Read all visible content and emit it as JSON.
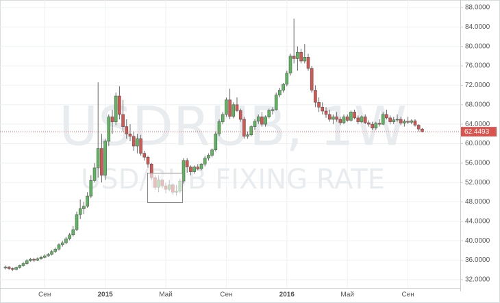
{
  "chart_data": {
    "type": "candlestick",
    "watermark": "USDRUB, 1W",
    "subtitle": "USD/RUB FIXING RATE",
    "categories": [
      null,
      null,
      null,
      null,
      null,
      null,
      null,
      null,
      null,
      null,
      null,
      "Сен",
      null,
      null,
      null,
      null,
      null,
      null,
      null,
      null,
      null,
      null,
      null,
      null,
      null,
      null,
      null,
      null,
      "2015",
      null,
      null,
      null,
      null,
      null,
      null,
      null,
      null,
      null,
      null,
      null,
      null,
      null,
      null,
      null,
      null,
      "Май",
      null,
      null,
      null,
      null,
      null,
      null,
      null,
      null,
      null,
      null,
      null,
      null,
      null,
      null,
      null,
      null,
      "Сен",
      null,
      null,
      null,
      null,
      null,
      null,
      null,
      null,
      null,
      null,
      null,
      null,
      null,
      null,
      null,
      null,
      "2016",
      null,
      null,
      null,
      null,
      null,
      null,
      null,
      null,
      null,
      null,
      null,
      null,
      null,
      null,
      null,
      null,
      "Май",
      null,
      null,
      null,
      null,
      null,
      null,
      null,
      null,
      null,
      null,
      null,
      null,
      null,
      null,
      null,
      null,
      "Сен",
      null,
      null,
      null,
      null
    ],
    "open": [
      34.4,
      34.6,
      34.3,
      34.1,
      34.5,
      34.9,
      35.3,
      35.9,
      36.2,
      36.0,
      36.3,
      36.6,
      36.9,
      37.2,
      37.8,
      38.3,
      39.2,
      39.6,
      40.4,
      41.2,
      42.3,
      45.4,
      46.6,
      47.1,
      49.2,
      52.4,
      55.0,
      59.0,
      53.5,
      60.5,
      65.5,
      64.5,
      69.8,
      66.0,
      63.5,
      62.0,
      61.5,
      59.5,
      61.0,
      58.0,
      57.2,
      55.8,
      53.0,
      51.0,
      52.5,
      51.3,
      50.6,
      51.5,
      50.0,
      50.2,
      52.3,
      56.5,
      55.2,
      54.2,
      55.2,
      54.8,
      55.8,
      57.0,
      57.6,
      58.7,
      62.0,
      64.5,
      66.0,
      69.0,
      65.6,
      68.0,
      66.8,
      65.0,
      61.5,
      61.8,
      63.5,
      64.6,
      65.5,
      64.0,
      65.5,
      66.8,
      67.0,
      70.0,
      71.0,
      72.2,
      74.5,
      78.0,
      77.5,
      78.8,
      77.0,
      77.8,
      75.5,
      71.0,
      68.5,
      67.5,
      66.7,
      66.0,
      65.0,
      65.5,
      65.0,
      64.3,
      65.5,
      64.8,
      66.5,
      65.3,
      64.5,
      65.5,
      64.3,
      64.0,
      63.2,
      64.2,
      64.0,
      66.0,
      65.3,
      64.5,
      64.9,
      65.0,
      64.2,
      64.6,
      64.4,
      64.7,
      63.8,
      63.0
    ],
    "high": [
      34.9,
      34.8,
      34.5,
      34.7,
      35.1,
      35.6,
      36.2,
      36.5,
      36.5,
      36.6,
      36.9,
      37.2,
      37.5,
      38.1,
      38.6,
      39.5,
      40.0,
      40.8,
      41.6,
      43.0,
      46.0,
      48.5,
      48.0,
      50.0,
      53.5,
      56.0,
      72.6,
      62.0,
      61.0,
      66.0,
      67.0,
      70.5,
      71.8,
      69.0,
      65.0,
      64.0,
      62.5,
      62.0,
      61.8,
      58.5,
      57.5,
      56.0,
      53.5,
      53.5,
      52.8,
      52.0,
      52.5,
      51.8,
      51.5,
      52.8,
      57.0,
      57.0,
      55.5,
      55.5,
      55.8,
      56.0,
      57.5,
      58.0,
      59.0,
      62.5,
      65.0,
      66.5,
      69.5,
      71.3,
      68.5,
      69.5,
      67.2,
      65.5,
      62.5,
      63.8,
      65.0,
      66.0,
      66.5,
      65.8,
      67.2,
      67.5,
      70.5,
      71.5,
      72.5,
      75.0,
      78.5,
      85.7,
      80.0,
      79.5,
      80.5,
      78.5,
      76.0,
      72.0,
      69.5,
      68.5,
      67.5,
      67.0,
      66.0,
      66.5,
      65.5,
      66.0,
      66.0,
      66.8,
      67.0,
      65.8,
      65.8,
      66.0,
      64.8,
      64.5,
      64.5,
      65.0,
      66.5,
      67.0,
      65.8,
      65.5,
      66.0,
      65.5,
      65.0,
      65.5,
      65.0,
      65.0,
      64.0,
      63.2
    ],
    "low": [
      34.1,
      34.0,
      33.8,
      33.9,
      34.3,
      34.7,
      35.1,
      35.7,
      35.7,
      35.8,
      36.1,
      36.4,
      36.7,
      37.0,
      37.5,
      38.0,
      38.8,
      39.3,
      40.1,
      40.9,
      42.0,
      44.5,
      45.5,
      46.8,
      48.8,
      52.0,
      53.0,
      52.0,
      52.5,
      59.5,
      62.0,
      63.8,
      65.0,
      62.5,
      61.0,
      60.5,
      58.5,
      58.0,
      57.5,
      56.5,
      55.0,
      52.5,
      50.5,
      50.0,
      50.8,
      49.8,
      50.2,
      49.5,
      49.3,
      49.8,
      51.8,
      54.0,
      53.5,
      53.8,
      54.5,
      54.5,
      55.3,
      56.5,
      57.2,
      58.4,
      61.5,
      64.0,
      65.5,
      65.0,
      65.2,
      66.5,
      64.5,
      61.0,
      61.0,
      61.5,
      62.8,
      64.0,
      63.5,
      63.5,
      65.2,
      66.0,
      66.8,
      69.5,
      70.5,
      71.8,
      74.0,
      76.5,
      75.0,
      76.5,
      76.5,
      75.0,
      70.5,
      67.5,
      66.5,
      66.0,
      65.3,
      64.5,
      64.0,
      64.5,
      63.8,
      64.0,
      64.5,
      64.5,
      65.0,
      64.0,
      64.2,
      64.0,
      63.5,
      62.8,
      62.8,
      63.5,
      63.8,
      65.0,
      64.0,
      64.0,
      64.5,
      63.8,
      63.5,
      64.0,
      64.0,
      63.5,
      62.5,
      62.3
    ],
    "close": [
      34.6,
      34.3,
      34.1,
      34.5,
      34.9,
      35.3,
      35.9,
      36.2,
      36.0,
      36.3,
      36.6,
      36.9,
      37.2,
      37.8,
      38.3,
      39.2,
      39.6,
      40.4,
      41.2,
      42.3,
      45.4,
      46.6,
      47.1,
      49.2,
      52.4,
      55.0,
      59.0,
      53.5,
      60.5,
      65.5,
      64.5,
      69.8,
      66.0,
      63.5,
      62.0,
      61.5,
      59.5,
      61.0,
      58.0,
      57.2,
      55.8,
      53.0,
      51.0,
      52.5,
      51.3,
      50.6,
      51.5,
      50.0,
      50.2,
      52.3,
      56.5,
      55.2,
      54.2,
      55.2,
      54.8,
      55.8,
      57.0,
      57.6,
      58.7,
      62.0,
      64.5,
      66.0,
      69.0,
      65.6,
      68.0,
      66.8,
      65.0,
      61.5,
      61.8,
      63.5,
      64.6,
      65.5,
      64.0,
      65.5,
      66.8,
      67.0,
      70.0,
      71.0,
      72.2,
      74.5,
      78.0,
      77.5,
      78.8,
      77.0,
      77.8,
      75.5,
      71.0,
      68.5,
      67.5,
      66.7,
      66.0,
      65.0,
      65.5,
      65.0,
      64.3,
      65.5,
      64.8,
      66.5,
      65.3,
      64.5,
      65.5,
      64.3,
      64.0,
      63.2,
      64.2,
      64.0,
      66.0,
      65.3,
      64.5,
      64.9,
      65.0,
      64.2,
      64.6,
      64.4,
      64.7,
      63.8,
      63.0,
      62.45
    ],
    "up_color": "#5cb85c",
    "down_color": "#d9534f",
    "last_price": 62.4493,
    "ylim": [
      30.3,
      88.85
    ],
    "yticks": [
      {
        "value": 32,
        "label": "32.0000"
      },
      {
        "value": 36,
        "label": "36.0000"
      },
      {
        "value": 40,
        "label": "40.0000"
      },
      {
        "value": 44,
        "label": "44.0000"
      },
      {
        "value": 48,
        "label": "48.0000"
      },
      {
        "value": 52,
        "label": "52.0000"
      },
      {
        "value": 56,
        "label": "56.0000"
      },
      {
        "value": 60,
        "label": "60.0000"
      },
      {
        "value": 64,
        "label": "64.0000"
      },
      {
        "value": 68,
        "label": "68.0000"
      },
      {
        "value": 72,
        "label": "72.0000"
      },
      {
        "value": 76,
        "label": "76.0000"
      },
      {
        "value": 80,
        "label": "80.0000"
      },
      {
        "value": 84,
        "label": "84.0000"
      },
      {
        "value": 88,
        "label": "88.0000"
      }
    ],
    "grid": true
  }
}
